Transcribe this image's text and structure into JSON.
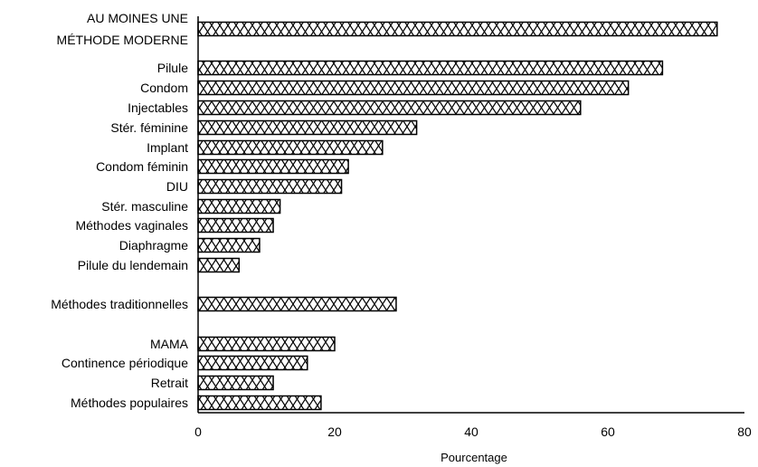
{
  "chart_data": {
    "type": "bar",
    "orientation": "horizontal",
    "categories": [
      [
        "AU MOINES UNE",
        "MÉTHODE MODERNE"
      ],
      "Pilule",
      "Condom",
      "Injectables",
      "Stér. féminine",
      "Implant",
      "Condom féminin",
      "DIU",
      "Stér. masculine",
      "Méthodes vaginales",
      "Diaphragme",
      "Pilule du lendemain",
      "Méthodes traditionnelles",
      "MAMA",
      "Continence périodique",
      "Retrait",
      "Méthodes populaires"
    ],
    "values": [
      76,
      68,
      63,
      56,
      32,
      27,
      22,
      21,
      12,
      11,
      9,
      6,
      29,
      20,
      16,
      11,
      18
    ],
    "xlabel": "Pourcentage",
    "ylabel": "",
    "xlim": [
      0,
      80
    ],
    "xticks": [
      0,
      20,
      40,
      60,
      80
    ],
    "xtick_labels": [
      "0",
      "20",
      "40",
      "60",
      "80"
    ],
    "grid": false,
    "bar_pattern": "cross-hatch",
    "colors": {
      "bar_fill": "#ffffff",
      "bar_stroke": "#000000",
      "axis": "#000000"
    }
  }
}
